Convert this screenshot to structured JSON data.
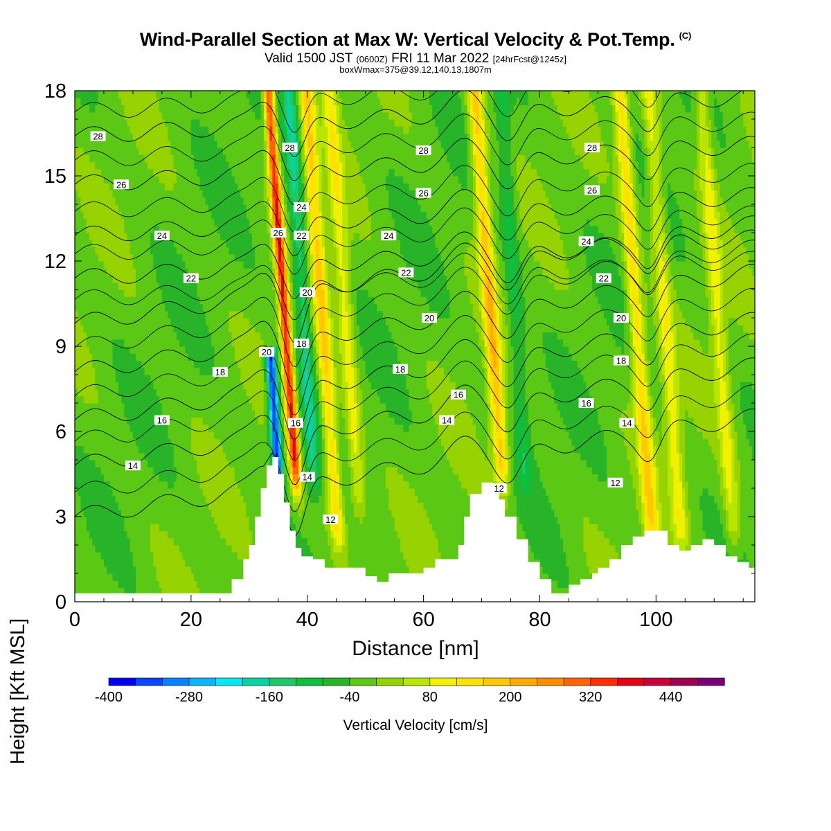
{
  "header": {
    "title": "Wind-Parallel Section at Max W: Vertical Velocity & Pot.Temp.",
    "title_mark": "(C)",
    "valid_prefix": "Valid 1500 JST",
    "valid_zulu": "(0600Z)",
    "valid_date": "FRI 11 Mar 2022",
    "forecast_info": "[24hrFcst@1245z]",
    "box_info": "boxWmax=375@39.12,140.13,1807m"
  },
  "chart_data": {
    "type": "contour",
    "xlabel": "Distance [nm]",
    "ylabel": "Height [Kft MSL]",
    "xlim": [
      0,
      117
    ],
    "ylim": [
      0,
      18
    ],
    "x_ticks": [
      "0",
      "20",
      "40",
      "60",
      "80",
      "100"
    ],
    "x_tick_values": [
      0,
      20,
      40,
      60,
      80,
      100
    ],
    "y_ticks": [
      "0",
      "3",
      "6",
      "9",
      "12",
      "15",
      "18"
    ],
    "y_tick_values": [
      0,
      3,
      6,
      9,
      12,
      15,
      18
    ],
    "shaded_field": "Vertical Velocity [cm/s]",
    "colorbar": {
      "label": "Vertical Velocity [cm/s]",
      "tick_labels": [
        "-400",
        "-280",
        "-160",
        "-40",
        "80",
        "200",
        "320",
        "440"
      ],
      "tick_values": [
        -400,
        -280,
        -160,
        -40,
        80,
        200,
        320,
        440
      ],
      "min": -400,
      "max": 520,
      "step": 40,
      "colors": [
        "#0000f0",
        "#0a46ff",
        "#0a82ff",
        "#0ab4ff",
        "#0ae6f0",
        "#0ad2a0",
        "#1ec864",
        "#0fbe3c",
        "#28b428",
        "#5ac814",
        "#96d200",
        "#b9e600",
        "#f0f000",
        "#ffe100",
        "#ffc800",
        "#ffaa00",
        "#ff8c00",
        "#ff6400",
        "#ff2d00",
        "#e60014",
        "#c8003c",
        "#a00050",
        "#780078"
      ]
    },
    "vertical_velocity_features": [
      {
        "x": 37.5,
        "z_bottom": 5,
        "z_top": 18,
        "peak_cms": 375,
        "sign": "up"
      },
      {
        "x": 34.5,
        "z_bottom": 5,
        "z_top": 9,
        "peak_cms": -360,
        "sign": "down"
      },
      {
        "x": 40.5,
        "z_bottom": 5,
        "z_top": 18,
        "peak_cms": -140,
        "sign": "down"
      },
      {
        "x": 44,
        "z_bottom": 3,
        "z_top": 18,
        "peak_cms": 180,
        "sign": "up"
      },
      {
        "x": 48,
        "z_bottom": 4,
        "z_top": 18,
        "peak_cms": 120,
        "sign": "up"
      },
      {
        "x": 73,
        "z_bottom": 5,
        "z_top": 18,
        "peak_cms": 200,
        "sign": "up"
      },
      {
        "x": 77,
        "z_bottom": 5,
        "z_top": 18,
        "peak_cms": -80,
        "sign": "down"
      },
      {
        "x": 98,
        "z_bottom": 3,
        "z_top": 18,
        "peak_cms": 170,
        "sign": "up"
      },
      {
        "x": 103,
        "z_bottom": 3,
        "z_top": 18,
        "peak_cms": 120,
        "sign": "up"
      },
      {
        "x": 112,
        "z_bottom": 3,
        "z_top": 18,
        "peak_cms": 110,
        "sign": "up"
      }
    ],
    "terrain_kft": {
      "x": [
        0,
        25,
        27,
        29,
        30,
        31,
        32,
        33,
        34,
        35,
        36,
        37,
        38,
        39,
        41,
        43,
        45,
        48,
        50,
        52,
        54,
        56,
        58,
        60,
        62,
        64,
        66,
        67,
        68,
        70,
        72,
        73,
        74,
        76,
        78,
        80,
        82,
        83,
        85,
        87,
        89,
        90,
        92,
        94,
        96,
        98,
        100,
        102,
        104,
        106,
        108,
        110,
        112,
        114,
        116,
        117
      ],
      "z": [
        0.3,
        0.3,
        0.8,
        1.5,
        2.0,
        3.0,
        4.0,
        4.8,
        5.1,
        4.5,
        3.5,
        2.5,
        1.9,
        1.6,
        1.5,
        1.2,
        1.2,
        1.2,
        0.9,
        0.7,
        1.0,
        1.0,
        1.0,
        1.2,
        1.5,
        1.5,
        2.0,
        3.0,
        3.8,
        4.2,
        4.0,
        3.6,
        3.0,
        2.2,
        1.4,
        0.8,
        0.3,
        0.3,
        0.6,
        0.8,
        1.0,
        1.2,
        1.5,
        2.0,
        2.3,
        2.5,
        2.5,
        2.0,
        1.8,
        2.0,
        2.2,
        2.0,
        1.6,
        1.4,
        1.2,
        1.2
      ]
    },
    "theta_contours": [
      {
        "value": 12,
        "label": "12",
        "y_at_start": 3.0,
        "label_positions": [
          [
            44,
            2.9
          ],
          [
            73,
            4.0
          ],
          [
            93,
            4.2
          ]
        ]
      },
      {
        "value": 14,
        "label": "14",
        "y_at_start": 4.8,
        "label_positions": [
          [
            10,
            4.8
          ],
          [
            40,
            4.4
          ],
          [
            64,
            6.4
          ],
          [
            95,
            6.3
          ]
        ]
      },
      {
        "value": 16,
        "label": "16",
        "y_at_start": 6.4,
        "label_positions": [
          [
            15,
            6.4
          ],
          [
            38,
            6.3
          ],
          [
            66,
            7.3
          ],
          [
            88,
            7.0
          ]
        ]
      },
      {
        "value": 18,
        "label": "18",
        "y_at_start": 8.1,
        "label_positions": [
          [
            25,
            8.1
          ],
          [
            39,
            9.1
          ],
          [
            56,
            8.2
          ],
          [
            94,
            8.5
          ]
        ]
      },
      {
        "value": 20,
        "label": "20",
        "y_at_start": 9.8,
        "label_positions": [
          [
            33,
            8.8
          ],
          [
            40,
            10.9
          ],
          [
            61,
            10.0
          ],
          [
            94,
            10.0
          ]
        ]
      },
      {
        "value": 22,
        "label": "22",
        "y_at_start": 11.4,
        "label_positions": [
          [
            20,
            11.4
          ],
          [
            39,
            12.9
          ],
          [
            57,
            11.6
          ],
          [
            91,
            11.4
          ]
        ]
      },
      {
        "value": 24,
        "label": "24",
        "y_at_start": 12.9,
        "label_positions": [
          [
            15,
            12.9
          ],
          [
            39,
            13.9
          ],
          [
            54,
            12.9
          ],
          [
            88,
            12.7
          ]
        ]
      },
      {
        "value": 26,
        "label": "26",
        "y_at_start": 14.7,
        "label_positions": [
          [
            8,
            14.7
          ],
          [
            35,
            13.0
          ],
          [
            60,
            14.4
          ],
          [
            89,
            14.5
          ]
        ]
      },
      {
        "value": 28,
        "label": "28",
        "y_at_start": 16.4,
        "label_positions": [
          [
            4,
            16.4
          ],
          [
            37,
            16.0
          ],
          [
            60,
            15.9
          ],
          [
            89,
            16.0
          ]
        ]
      }
    ]
  }
}
